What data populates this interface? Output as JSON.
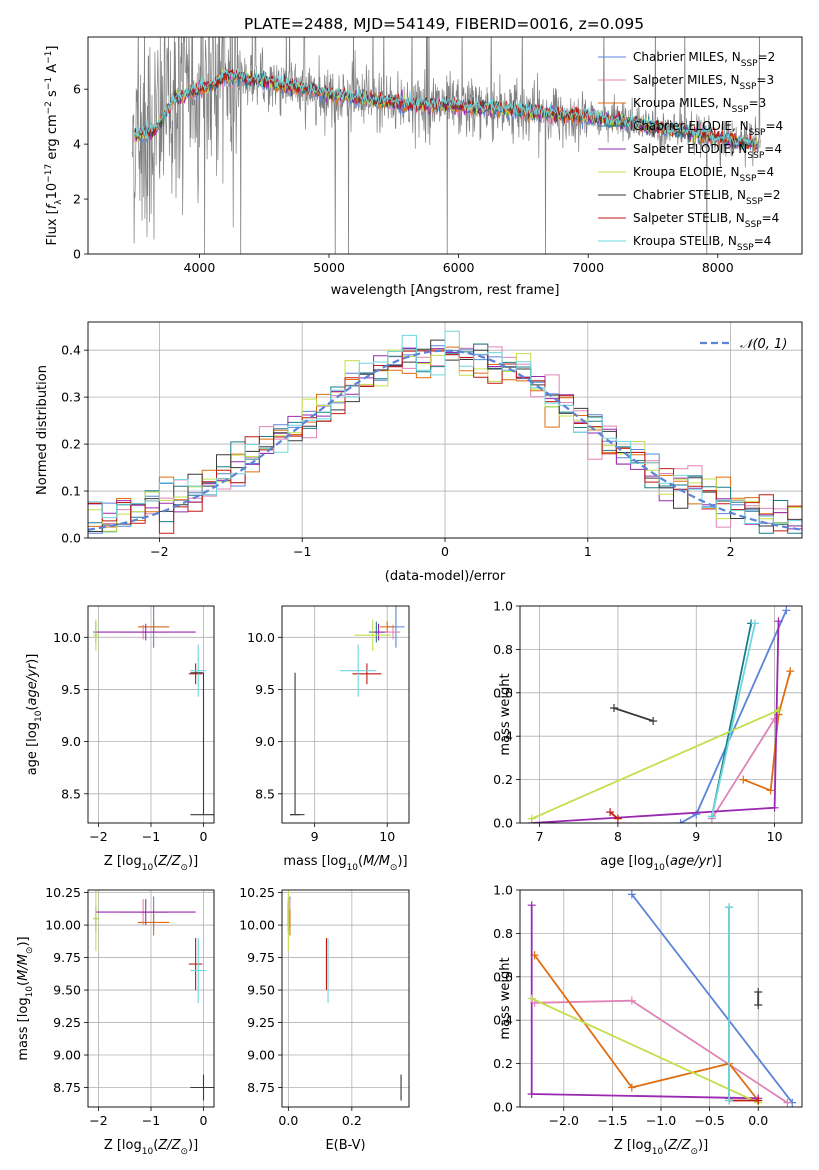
{
  "figure_title": "PLATE=2488, MJD=54149, FIBERID=0016, z=0.095",
  "legend_main": [
    {
      "name": "Chabrier MILES, N_SSP=2",
      "base": "Chabrier MILES, N",
      "sub": "SSP",
      "tail": "=2"
    },
    {
      "name": "Salpeter MILES, N_SSP=3",
      "base": "Salpeter MILES, N",
      "sub": "SSP",
      "tail": "=3"
    },
    {
      "name": "Kroupa MILES, N_SSP=3",
      "base": "Kroupa MILES, N",
      "sub": "SSP",
      "tail": "=3"
    },
    {
      "name": "Chabrier ELODIE, N_SSP=4",
      "base": "Chabrier ELODIE, N",
      "sub": "SSP",
      "tail": "=4"
    },
    {
      "name": "Salpeter ELODIE, N_SSP=4",
      "base": "Salpeter ELODIE, N",
      "sub": "SSP",
      "tail": "=4"
    },
    {
      "name": "Kroupa ELODIE, N_SSP=4",
      "base": "Kroupa ELODIE, N",
      "sub": "SSP",
      "tail": "=4"
    },
    {
      "name": "Chabrier STELIB, N_SSP=2",
      "base": "Chabrier STELIB, N",
      "sub": "SSP",
      "tail": "=2"
    },
    {
      "name": "Salpeter STELIB, N_SSP=4",
      "base": "Salpeter STELIB, N",
      "sub": "SSP",
      "tail": "=4"
    },
    {
      "name": "Kroupa STELIB, N_SSP=4",
      "base": "Kroupa STELIB, N",
      "sub": "SSP",
      "tail": "=4"
    }
  ],
  "colors": {
    "chabrier_miles": "#5b84d8",
    "salpeter_miles": "#e084b8",
    "kroupa_miles": "#e06d10",
    "chabrier_elodie": "#1a7e8a",
    "salpeter_elodie": "#9a28b0",
    "kroupa_elodie": "#c2e04c",
    "chabrier_stelib": "#3a3a3a",
    "salpeter_stelib": "#c01a10",
    "kroupa_stelib": "#6ed6de",
    "data": "#808080",
    "normal": "#5b84d8",
    "grid": "#b0b0b0"
  },
  "chart_data": [
    {
      "id": "spectrum",
      "type": "line",
      "xlabel": "wavelength [Angstrom, rest frame]",
      "ylabel": "Flux [f_λ 10^-17 erg cm^-2 s^-1 A^-1]",
      "xlim": [
        3140,
        8650
      ],
      "ylim": [
        0,
        7.9
      ],
      "xticks": [
        4000,
        5000,
        6000,
        7000,
        8000
      ],
      "yticks": [
        0,
        2,
        4,
        6
      ],
      "grid": false,
      "legend_position": "right",
      "continuum": [
        [
          3500,
          4.3
        ],
        [
          3650,
          4.45
        ],
        [
          3800,
          5.6
        ],
        [
          3900,
          5.85
        ],
        [
          4000,
          6.0
        ],
        [
          4100,
          6.15
        ],
        [
          4200,
          6.5
        ],
        [
          4300,
          6.45
        ],
        [
          4400,
          6.35
        ],
        [
          4600,
          6.2
        ],
        [
          4800,
          6.0
        ],
        [
          5000,
          5.85
        ],
        [
          5300,
          5.6
        ],
        [
          5600,
          5.45
        ],
        [
          6000,
          5.35
        ],
        [
          6300,
          5.3
        ],
        [
          6600,
          5.15
        ],
        [
          7000,
          5.0
        ],
        [
          7400,
          4.7
        ],
        [
          7800,
          4.4
        ],
        [
          8200,
          4.05
        ],
        [
          8300,
          4.0
        ]
      ],
      "data_range": [
        3480,
        7460
      ]
    },
    {
      "id": "residual_histogram",
      "type": "line",
      "xlabel": "(data-model)/error",
      "ylabel": "Normed distribution",
      "xlim": [
        -2.5,
        2.5
      ],
      "ylim": [
        0,
        0.46
      ],
      "xticks": [
        -2,
        -1,
        0,
        1,
        2
      ],
      "yticks": [
        0.0,
        0.1,
        0.2,
        0.3,
        0.4
      ],
      "grid": true,
      "legend": "𝒩(0, 1)",
      "legend_position": "top-right",
      "bin_width": 0.1
    },
    {
      "id": "age_vs_Z",
      "type": "scatter",
      "xlabel_base": "Z [log",
      "xlabel_sub": "10",
      "xlabel_tail": "(Z/Z",
      "ylabel": "age  [log10(age/yr)]",
      "xlim": [
        -2.2,
        0.2
      ],
      "ylim": [
        8.22,
        10.3
      ],
      "xticks": [
        -2,
        -1,
        0
      ],
      "yticks": [
        8.5,
        9.0,
        9.5,
        10.0
      ],
      "grid": true
    },
    {
      "id": "age_vs_mass",
      "type": "scatter",
      "xlabel": "mass [log10(M/M☉)]",
      "xlim": [
        8.55,
        10.3
      ],
      "ylim": [
        8.22,
        10.3
      ],
      "xticks": [
        9,
        10
      ],
      "yticks": [
        8.5,
        9.0,
        9.5,
        10.0
      ],
      "grid": true
    },
    {
      "id": "weight_vs_age",
      "type": "line",
      "xlabel": "age  [log10(age/yr)]",
      "ylabel": "mass weight",
      "xlim": [
        6.75,
        10.35
      ],
      "ylim": [
        0,
        1.0
      ],
      "xticks": [
        7,
        8,
        9,
        10
      ],
      "yticks": [
        0.0,
        0.2,
        0.4,
        0.6,
        0.8,
        1.0
      ],
      "grid": true
    },
    {
      "id": "mass_vs_Z",
      "type": "scatter",
      "xlabel": "Z [log10(Z/Z☉)]",
      "ylabel": "mass [log10(M/M☉)]",
      "xlim": [
        -2.2,
        0.2
      ],
      "ylim": [
        8.6,
        10.27
      ],
      "xticks": [
        -2,
        -1,
        0
      ],
      "yticks": [
        8.75,
        9.0,
        9.25,
        9.5,
        9.75,
        10.0,
        10.25
      ],
      "grid": true
    },
    {
      "id": "mass_vs_ebv",
      "type": "scatter",
      "xlabel": "E(B-V)",
      "xlim": [
        -0.02,
        0.38
      ],
      "ylim": [
        8.6,
        10.27
      ],
      "xticks": [
        0.0,
        0.2
      ],
      "yticks": [
        8.75,
        9.0,
        9.25,
        9.5,
        9.75,
        10.0,
        10.25
      ],
      "grid": true
    },
    {
      "id": "weight_vs_Z",
      "type": "line",
      "xlabel": "Z [log10(Z/Z☉)]",
      "ylabel": "mass weight",
      "xlim": [
        -2.45,
        0.45
      ],
      "ylim": [
        0,
        1.0
      ],
      "xticks": [
        -2.0,
        -1.5,
        -1.0,
        -0.5,
        0.0
      ],
      "yticks": [
        0.0,
        0.2,
        0.4,
        0.6,
        0.8,
        1.0
      ],
      "grid": true
    }
  ],
  "models": [
    {
      "key": "chabrier_miles",
      "Z": -0.95,
      "Zerr": 0.28,
      "age": 10.1,
      "ageerr": 0.2,
      "mass": 10.12,
      "masserr": 0.12,
      "mass_age": 10.1,
      "ebv": 0.005,
      "age_track": [
        [
          8.8,
          0.0
        ],
        [
          9.0,
          0.04
        ],
        [
          10.15,
          0.98
        ]
      ],
      "Z_track": [
        [
          0.35,
          0.02
        ],
        [
          -1.3,
          0.98
        ]
      ]
    },
    {
      "key": "salpeter_miles",
      "Z": -1.15,
      "Zerr": 0.45,
      "age": 10.05,
      "ageerr": 0.07,
      "mass": 10.08,
      "masserr": 0.1,
      "mass_age": 10.1,
      "ebv": 0.005,
      "age_track": [
        [
          9.2,
          0.02
        ],
        [
          10.0,
          0.48
        ],
        [
          10.05,
          0.5
        ]
      ],
      "Z_track": [
        [
          -2.3,
          0.48
        ],
        [
          -1.3,
          0.49
        ],
        [
          0.3,
          0.02
        ]
      ]
    },
    {
      "key": "kroupa_miles",
      "Z": -0.95,
      "Zerr": 0.3,
      "age": 10.1,
      "ageerr": 0.05,
      "mass": 10.0,
      "masserr": 0.1,
      "mass_age": 10.02,
      "ebv": 0.005,
      "age_track": [
        [
          9.6,
          0.2
        ],
        [
          9.95,
          0.15
        ],
        [
          10.05,
          0.5
        ],
        [
          10.2,
          0.7
        ]
      ],
      "Z_track": [
        [
          -2.3,
          0.7
        ],
        [
          -1.3,
          0.09
        ],
        [
          -0.3,
          0.2
        ],
        [
          0.0,
          0.03
        ]
      ]
    },
    {
      "key": "chabrier_elodie",
      "Z": -2.05,
      "Zerr": 0.05,
      "age": 10.05,
      "ageerr": 0.1,
      "mass": 9.85,
      "masserr": 0.1,
      "mass_age": 10.05,
      "ebv": 0.0,
      "age_track": [
        [
          9.2,
          0.03
        ],
        [
          9.7,
          0.92
        ]
      ],
      "Z_track": [
        [
          -0.3,
          0.92
        ],
        [
          -0.3,
          0.04
        ]
      ]
    },
    {
      "key": "salpeter_elodie",
      "Z": -1.1,
      "Zerr": 0.95,
      "age": 10.05,
      "ageerr": 0.08,
      "mass": 9.88,
      "masserr": 0.1,
      "mass_age": 10.1,
      "ebv": 0.0,
      "age_track": [
        [
          6.9,
          0.0
        ],
        [
          10.0,
          0.07
        ],
        [
          10.05,
          0.93
        ]
      ],
      "Z_track": [
        [
          -2.33,
          0.93
        ],
        [
          -2.33,
          0.06
        ],
        [
          0.0,
          0.04
        ]
      ]
    },
    {
      "key": "kroupa_elodie",
      "Z": -2.05,
      "Zerr": 0.05,
      "age": 10.02,
      "ageerr": 0.15,
      "mass": 9.8,
      "masserr": 0.25,
      "mass_age": 10.05,
      "ebv": 0.0,
      "age_track": [
        [
          6.9,
          0.02
        ],
        [
          10.05,
          0.52
        ]
      ],
      "Z_track": [
        [
          -2.33,
          0.5
        ],
        [
          0.0,
          0.02
        ]
      ]
    },
    {
      "key": "chabrier_stelib",
      "Z": 0.0,
      "Zerr": 0.25,
      "age": 8.3,
      "ageerr": 0.0,
      "mass": 8.76,
      "masserr": 0.1,
      "mass_age": 8.75,
      "ebv": 0.355,
      "age_track": [
        [
          7.95,
          0.53
        ],
        [
          8.45,
          0.47
        ]
      ],
      "Z_track": [
        [
          0.0,
          0.53
        ],
        [
          0.0,
          0.47
        ]
      ]
    },
    {
      "key": "salpeter_stelib",
      "Z": -0.15,
      "Zerr": 0.13,
      "age": 9.65,
      "ageerr": 0.1,
      "mass": 9.72,
      "masserr": 0.2,
      "mass_age": 9.7,
      "ebv": 0.12,
      "age_track": [
        [
          7.9,
          0.05
        ],
        [
          8.0,
          0.02
        ]
      ],
      "Z_track": [
        [
          -0.3,
          0.03
        ],
        [
          0.0,
          0.03
        ]
      ]
    },
    {
      "key": "kroupa_stelib",
      "Z": -0.1,
      "Zerr": 0.15,
      "age": 9.68,
      "ageerr": 0.25,
      "mass": 9.6,
      "masserr": 0.25,
      "mass_age": 9.65,
      "ebv": 0.125,
      "age_track": [
        [
          9.2,
          0.03
        ],
        [
          9.75,
          0.92
        ]
      ],
      "Z_track": [
        [
          -0.3,
          0.92
        ],
        [
          -0.3,
          0.03
        ]
      ]
    }
  ]
}
